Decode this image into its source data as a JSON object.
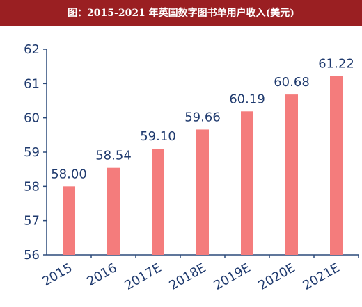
{
  "header": {
    "title": "图：2015-2021 年英国数字图书单用户收入(美元)"
  },
  "colors": {
    "bar": "#f47c7c",
    "axis": "#2c4a7a",
    "title_bg": "#9a1f22"
  },
  "chart_data": {
    "type": "bar",
    "title": "图：2015-2021 年英国数字图书单用户收入(美元)",
    "categories": [
      "2015",
      "2016",
      "2017E",
      "2018E",
      "2019E",
      "2020E",
      "2021E"
    ],
    "values": [
      58.0,
      58.54,
      59.1,
      59.66,
      60.19,
      60.68,
      61.22
    ],
    "value_labels": [
      "58.00",
      "58.54",
      "59.10",
      "59.66",
      "60.19",
      "60.68",
      "61.22"
    ],
    "ylim": [
      56,
      62
    ],
    "yticks": [
      56,
      57,
      58,
      59,
      60,
      61,
      62
    ],
    "xlabel": "",
    "ylabel": "",
    "grid": false,
    "legend": "none"
  }
}
